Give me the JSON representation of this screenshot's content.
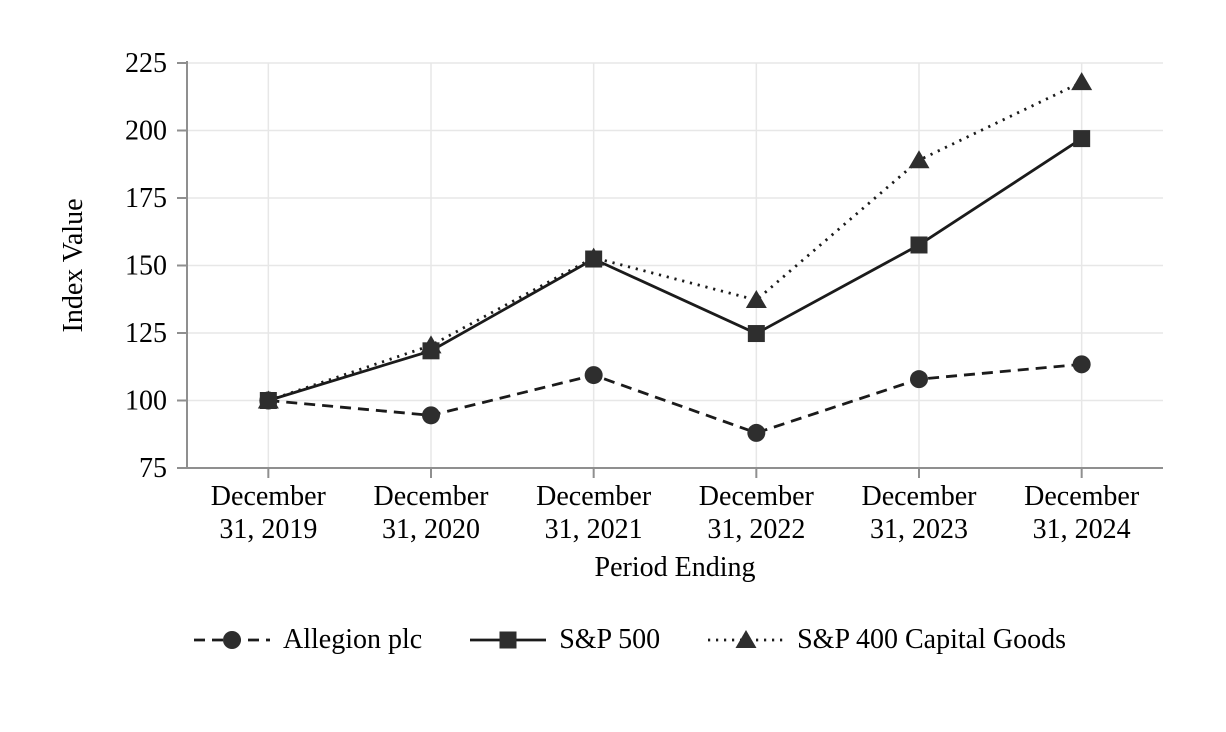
{
  "colors": {
    "series_line": "#1b1b1b",
    "marker_fill": "#2e2e2e",
    "gridline": "#e7e7e7",
    "axis_line": "#8f8f8f",
    "text": "#000000",
    "background": "#ffffff"
  },
  "chart_data": {
    "type": "line",
    "title": "",
    "xlabel": "Period Ending",
    "ylabel": "Index Value",
    "categories": [
      "December 31, 2019",
      "December 31, 2020",
      "December 31, 2021",
      "December 31, 2022",
      "December 31, 2023",
      "December 31, 2024"
    ],
    "y_ticks": [
      75,
      100,
      125,
      150,
      175,
      200,
      225
    ],
    "ylim": [
      75,
      225
    ],
    "grid": true,
    "legend_position": "bottom",
    "series": [
      {
        "name": "Allegion plc",
        "marker": "circle",
        "line_style": "dashed",
        "values": [
          100.0,
          94.5,
          109.4,
          88.0,
          107.9,
          113.4
        ]
      },
      {
        "name": "S&P 500",
        "marker": "square",
        "line_style": "solid",
        "values": [
          100.0,
          118.4,
          152.4,
          124.8,
          157.6,
          197.0
        ]
      },
      {
        "name": "S&P 400 Capital Goods",
        "marker": "triangle",
        "line_style": "dotted",
        "values": [
          100.0,
          120.4,
          152.9,
          137.2,
          189.0,
          217.9
        ]
      }
    ]
  }
}
